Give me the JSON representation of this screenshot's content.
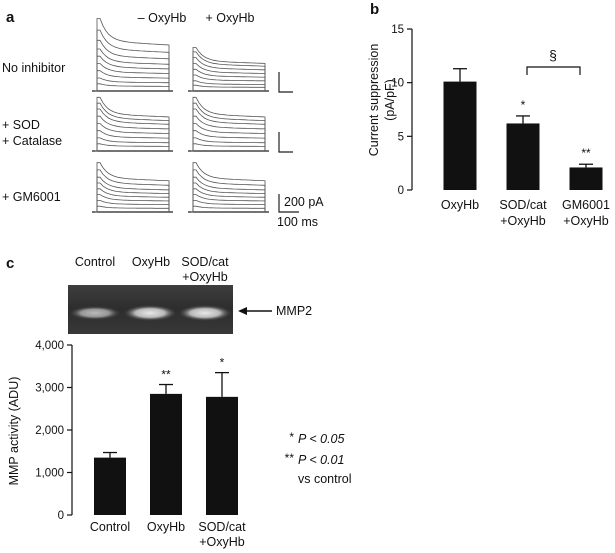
{
  "panel_a": {
    "letter": "a",
    "col_minus": "– OxyHb",
    "col_plus": "+ OxyHb",
    "row1": "No inhibitor",
    "row2_line1": "+ SOD",
    "row2_line2": "+ Catalase",
    "row3": "+ GM6001",
    "scale_current": "200 pA",
    "scale_time": "100 ms"
  },
  "panel_b": {
    "letter": "b",
    "bracket_symbol": "§"
  },
  "panel_c": {
    "letter": "c",
    "blot_labels": [
      {
        "line1": "Control",
        "line2": ""
      },
      {
        "line1": "OxyHb",
        "line2": ""
      },
      {
        "line1": "SOD/cat",
        "line2": "+OxyHb"
      }
    ],
    "blot_band_label": "MMP2",
    "legend": {
      "l1_stars": "*",
      "l1_text": "P < 0.05",
      "l2_stars": "**",
      "l2_text": "P < 0.01",
      "l3_text": "vs control"
    }
  },
  "chart_data": [
    {
      "type": "bar",
      "panel": "b",
      "ylabel_line1": "Current suppression",
      "ylabel_line2": "(pA/pF)",
      "categories": [
        {
          "line1": "OxyHb",
          "line2": ""
        },
        {
          "line1": "SOD/cat",
          "line2": "+OxyHb"
        },
        {
          "line1": "GM6001",
          "line2": "+OxyHb"
        }
      ],
      "values": [
        10.1,
        6.2,
        2.1
      ],
      "errors": [
        1.2,
        0.7,
        0.3
      ],
      "significance": [
        "",
        "*",
        "**"
      ],
      "ylim": [
        0,
        15
      ],
      "yticks": [
        "0",
        "5",
        "10",
        "15"
      ],
      "ytick_values": [
        0,
        5,
        10,
        15
      ],
      "bar_color": "#111111"
    },
    {
      "type": "bar",
      "panel": "c",
      "ylabel": "MMP activity (ADU)",
      "categories": [
        {
          "line1": "Control",
          "line2": ""
        },
        {
          "line1": "OxyHb",
          "line2": ""
        },
        {
          "line1": "SOD/cat",
          "line2": "+OxyHb"
        }
      ],
      "values": [
        1350,
        2850,
        2780
      ],
      "errors": [
        120,
        220,
        570
      ],
      "significance": [
        "",
        "**",
        "*"
      ],
      "ylim": [
        0,
        4000
      ],
      "yticks": [
        "0",
        "1,000",
        "2,000",
        "3,000",
        "4,000"
      ],
      "ytick_values": [
        0,
        1000,
        2000,
        3000,
        4000
      ],
      "bar_color": "#111111"
    }
  ]
}
